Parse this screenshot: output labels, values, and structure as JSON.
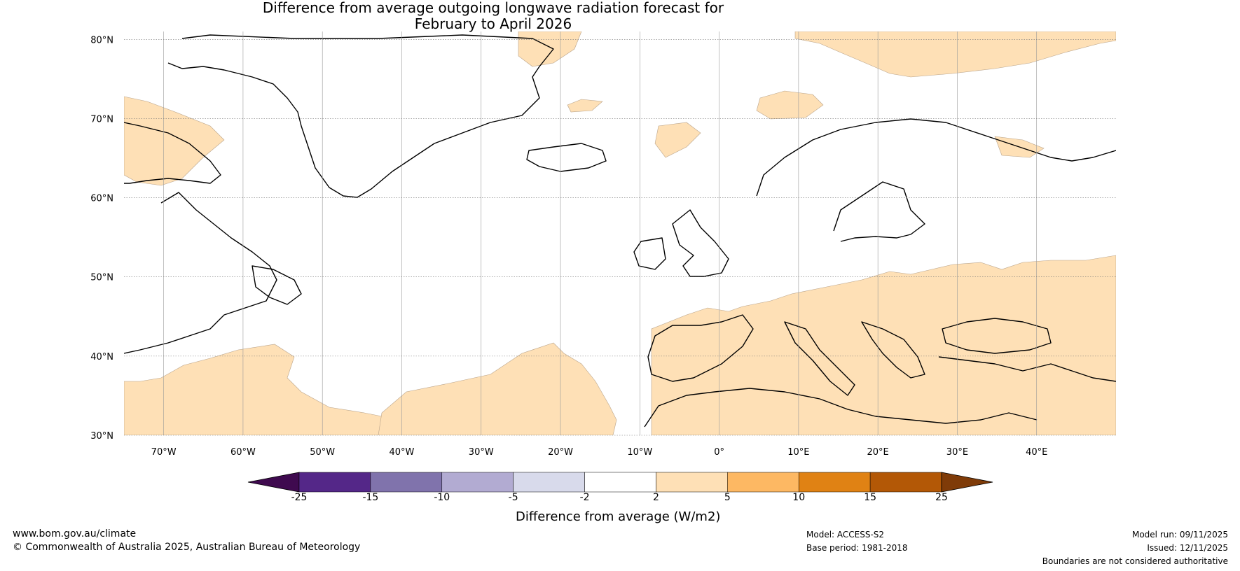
{
  "title": {
    "line1": "Difference from average outgoing longwave radiation forecast for",
    "line2": "February to April 2026"
  },
  "map": {
    "lat_labels": [
      "80°N",
      "70°N",
      "60°N",
      "50°N",
      "40°N",
      "30°N"
    ],
    "lat_values": [
      80,
      70,
      60,
      50,
      40,
      30
    ],
    "lon_labels": [
      "70°W",
      "60°W",
      "50°W",
      "40°W",
      "30°W",
      "20°W",
      "10°W",
      "0°",
      "10°E",
      "20°E",
      "30°E",
      "40°E"
    ],
    "lon_values": [
      -70,
      -60,
      -50,
      -40,
      -30,
      -20,
      -10,
      0,
      10,
      20,
      30,
      40
    ],
    "lon_range": [
      -75,
      50
    ],
    "lat_range": [
      30,
      81
    ]
  },
  "colorbar": {
    "title": "Difference from average (W/m2)",
    "ticks": [
      "-25",
      "-15",
      "-10",
      "-5",
      "-2",
      "2",
      "5",
      "10",
      "15",
      "25"
    ],
    "colors": [
      "#3f0a4f",
      "#542788",
      "#8073ac",
      "#b2abd2",
      "#d8daeb",
      "#ffffff",
      "#fee0b6",
      "#fdb863",
      "#e08214",
      "#b35806",
      "#7f3b08"
    ]
  },
  "footer": {
    "url": "www.bom.gov.au/climate",
    "copyright": "© Commonwealth of Australia 2025, Australian Bureau of Meteorology",
    "model": "Model: ACCESS-S2",
    "base_period": "Base period: 1981-2018",
    "model_run": "Model run: 09/11/2025",
    "issued": "Issued: 12/11/2025",
    "disclaimer": "Boundaries are not considered authoritative"
  }
}
